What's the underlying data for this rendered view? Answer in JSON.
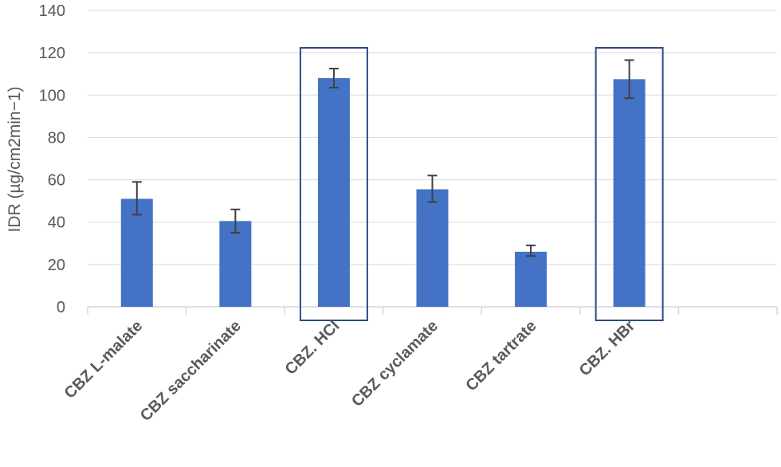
{
  "chart_data": {
    "type": "bar",
    "title": "",
    "xlabel": "",
    "ylabel": "IDR (µg/cm2min−1)",
    "ylim": [
      0,
      140
    ],
    "yticks": [
      0,
      20,
      40,
      60,
      80,
      100,
      120,
      140
    ],
    "grid": true,
    "categories": [
      "CBZ L-malate",
      "CBZ saccharinate",
      "CBZ. HCl",
      "CBZ cyclamate",
      "CBZ tartrate",
      "CBZ. HBr"
    ],
    "values": [
      51,
      40.5,
      108,
      55.5,
      26,
      107.5
    ],
    "error_low": [
      43.5,
      35,
      103.5,
      49.5,
      24,
      98.5
    ],
    "error_high": [
      59,
      46,
      112.5,
      62,
      29,
      116.5
    ],
    "highlighted": [
      "CBZ. HCl",
      "CBZ. HBr"
    ],
    "colors": {
      "bar": "#4472C4",
      "highlight_box": "#2F4A8A",
      "grid": "#D9D9D9",
      "error_bar": "#404040",
      "text": "#595959"
    }
  }
}
